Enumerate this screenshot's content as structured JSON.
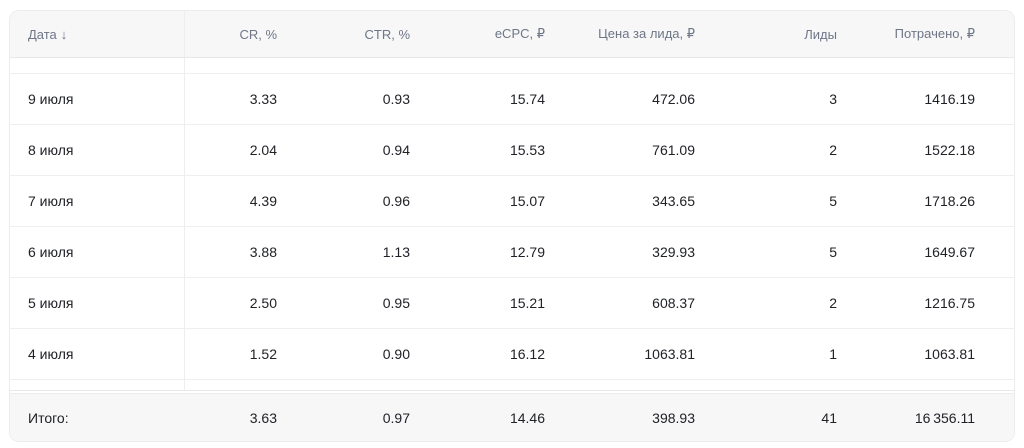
{
  "colors": {
    "header_footer_bg": "#f7f7f8",
    "row_bg": "#ffffff",
    "border": "#ececef",
    "row_border": "#efeff2",
    "header_text": "#6e7687",
    "body_text": "#202227"
  },
  "table": {
    "header": {
      "date_label": "Дата",
      "sort_icon": "↓",
      "cr": "CR, %",
      "ctr": "CTR, %",
      "ecpc": "eCPC, ₽",
      "cpl": "Цена за лида, ₽",
      "leads": "Лиды",
      "spent": "Потрачено, ₽"
    },
    "rows": [
      {
        "date": "9 июля",
        "cr": "3.33",
        "ctr": "0.93",
        "ecpc": "15.74",
        "cpl": "472.06",
        "leads": "3",
        "spent": "1416.19"
      },
      {
        "date": "8 июля",
        "cr": "2.04",
        "ctr": "0.94",
        "ecpc": "15.53",
        "cpl": "761.09",
        "leads": "2",
        "spent": "1522.18"
      },
      {
        "date": "7 июля",
        "cr": "4.39",
        "ctr": "0.96",
        "ecpc": "15.07",
        "cpl": "343.65",
        "leads": "5",
        "spent": "1718.26"
      },
      {
        "date": "6 июля",
        "cr": "3.88",
        "ctr": "1.13",
        "ecpc": "12.79",
        "cpl": "329.93",
        "leads": "5",
        "spent": "1649.67"
      },
      {
        "date": "5 июля",
        "cr": "2.50",
        "ctr": "0.95",
        "ecpc": "15.21",
        "cpl": "608.37",
        "leads": "2",
        "spent": "1216.75"
      },
      {
        "date": "4 июля",
        "cr": "1.52",
        "ctr": "0.90",
        "ecpc": "16.12",
        "cpl": "1063.81",
        "leads": "1",
        "spent": "1063.81"
      }
    ],
    "totals": {
      "label": "Итого:",
      "cr": "3.63",
      "ctr": "0.97",
      "ecpc": "14.46",
      "cpl": "398.93",
      "leads": "41",
      "spent": "16 356.11"
    }
  }
}
